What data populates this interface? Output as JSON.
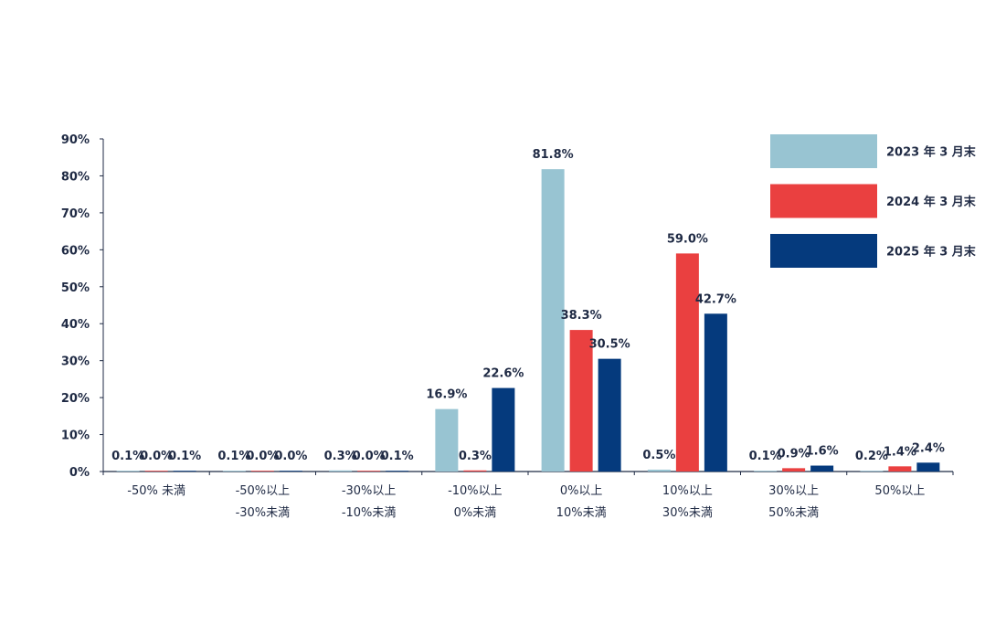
{
  "chart_data": {
    "type": "bar",
    "ylim": [
      0,
      90
    ],
    "yticks": [
      0,
      10,
      20,
      30,
      40,
      50,
      60,
      70,
      80,
      90
    ],
    "ytick_labels": [
      "0%",
      "10%",
      "20%",
      "30%",
      "40%",
      "50%",
      "60%",
      "70%",
      "80%",
      "90%"
    ],
    "categories": [
      [
        "-50% 未満",
        ""
      ],
      [
        "-50%以上",
        "-30%未満"
      ],
      [
        "-30%以上",
        "-10%未満"
      ],
      [
        "-10%以上",
        "0%未満"
      ],
      [
        "0%以上",
        "10%未満"
      ],
      [
        "10%以上",
        "30%未満"
      ],
      [
        "30%以上",
        "50%未満"
      ],
      [
        "50%以上",
        ""
      ]
    ],
    "series": [
      {
        "name": "2023 年 3 月末",
        "color": "#98c4d2",
        "values": [
          0.1,
          0.1,
          0.3,
          16.9,
          81.8,
          0.5,
          0.1,
          0.2
        ],
        "labels": [
          "0.1%",
          "0.1%",
          "0.3%",
          "16.9%",
          "81.8%",
          "0.5%",
          "0.1%",
          "0.2%"
        ]
      },
      {
        "name": "2024 年 3 月末",
        "color": "#ea4040",
        "values": [
          0.0,
          0.0,
          0.0,
          0.3,
          38.3,
          59.0,
          0.9,
          1.4
        ],
        "labels": [
          "0.0%",
          "0.0%",
          "0.0%",
          "0.3%",
          "38.3%",
          "59.0%",
          "0.9%",
          "1.4%"
        ]
      },
      {
        "name": "2025 年 3 月末",
        "color": "#053a7d",
        "values": [
          0.1,
          0.0,
          0.1,
          22.6,
          30.5,
          42.7,
          1.6,
          2.4
        ],
        "labels": [
          "0.1%",
          "0.0%",
          "0.1%",
          "22.6%",
          "30.5%",
          "42.7%",
          "1.6%",
          "2.4%"
        ]
      }
    ],
    "legend_position": "top-right",
    "grid": false
  }
}
